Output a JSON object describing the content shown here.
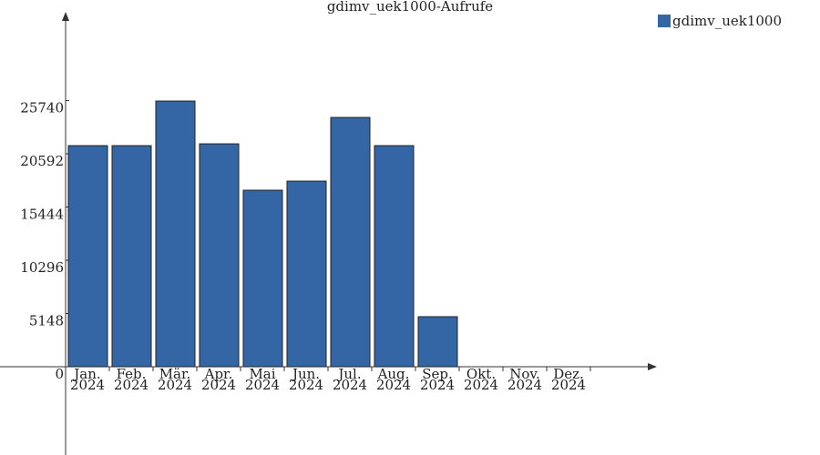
{
  "chart_data": {
    "type": "bar",
    "title": "gdimv_uek1000-Aufrufe",
    "categories": [
      "Jan.\n2024",
      "Feb.\n2024",
      "Mär.\n2024",
      "Apr.\n2024",
      "Mai\n2024",
      "Jun.\n2024",
      "Jul.\n2024",
      "Aug.\n2024",
      "Sep.\n2024",
      "Okt.\n2024",
      "Nov.\n2024",
      "Dez.\n2024"
    ],
    "series": [
      {
        "name": "gdimv_uek1000",
        "color": "#3465a4",
        "values": [
          21384,
          21384,
          25696,
          21560,
          17072,
          17952,
          24112,
          21384,
          4840,
          0,
          0,
          0
        ]
      }
    ],
    "ylim": [
      0,
      34150
    ],
    "yticks": [
      0,
      5148,
      10296,
      15444,
      20592,
      25740
    ],
    "legend": "top-right"
  }
}
